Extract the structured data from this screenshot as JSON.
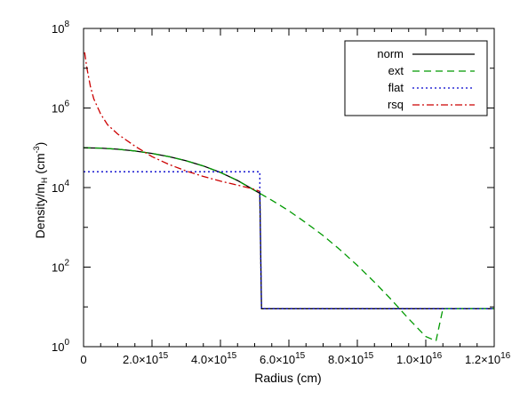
{
  "chart_data": {
    "type": "line",
    "title": "",
    "xlabel": "Radius (cm)",
    "ylabel": {
      "prefix": "Density/m",
      "sub": "H",
      "unit_open": " (cm",
      "unit_sup": "-3",
      "unit_close": ")"
    },
    "xlim": [
      0,
      1.2e+16
    ],
    "ylim": [
      1,
      100000000.0
    ],
    "yscale": "log",
    "grid": false,
    "legend_position": "top-right",
    "x_ticks": [
      {
        "value": 0,
        "mant": "0",
        "exp": ""
      },
      {
        "value": 2000000000000000.0,
        "mant": "2.0×10",
        "exp": "15"
      },
      {
        "value": 4000000000000000.0,
        "mant": "4.0×10",
        "exp": "15"
      },
      {
        "value": 6000000000000000.0,
        "mant": "6.0×10",
        "exp": "15"
      },
      {
        "value": 8000000000000000.0,
        "mant": "8.0×10",
        "exp": "15"
      },
      {
        "value": 1e+16,
        "mant": "1.0×10",
        "exp": "16"
      },
      {
        "value": 1.2e+16,
        "mant": "1.2×10",
        "exp": "16"
      }
    ],
    "y_ticks": [
      {
        "value": 1,
        "base": "10",
        "exp": "0"
      },
      {
        "value": 100,
        "base": "10",
        "exp": "2"
      },
      {
        "value": 10000,
        "base": "10",
        "exp": "4"
      },
      {
        "value": 1000000,
        "base": "10",
        "exp": "6"
      },
      {
        "value": 100000000,
        "base": "10",
        "exp": "8"
      }
    ],
    "series": [
      {
        "name": "norm",
        "color": "#000000",
        "dash": "",
        "x": [
          0,
          500000000000000.0,
          1000000000000000.0,
          1500000000000000.0,
          2000000000000000.0,
          2500000000000000.0,
          3000000000000000.0,
          3500000000000000.0,
          4000000000000000.0,
          4500000000000000.0,
          5000000000000000.0,
          5150000000000000.0,
          5200000000000000.0,
          6000000000000000.0,
          8000000000000000.0,
          1e+16,
          1.2e+16
        ],
        "y": [
          100000,
          98000,
          92000,
          83000,
          72000,
          60000,
          47000,
          35000,
          24000,
          15000,
          8500,
          7200,
          9,
          9,
          9,
          9,
          9
        ]
      },
      {
        "name": "ext",
        "color": "#009900",
        "dash": "8,5",
        "x": [
          0,
          500000000000000.0,
          1000000000000000.0,
          1500000000000000.0,
          2000000000000000.0,
          2500000000000000.0,
          3000000000000000.0,
          3500000000000000.0,
          4000000000000000.0,
          4500000000000000.0,
          5000000000000000.0,
          5500000000000000.0,
          6000000000000000.0,
          6500000000000000.0,
          7000000000000000.0,
          7500000000000000.0,
          8000000000000000.0,
          8500000000000000.0,
          9000000000000000.0,
          9500000000000000.0,
          1e+16,
          1.03e+16,
          1.05e+16,
          1.1e+16,
          1.2e+16
        ],
        "y": [
          100000,
          98000,
          92000,
          83000,
          72000,
          60000,
          47000,
          35000,
          24000,
          15000,
          8500,
          4800,
          2600,
          1300,
          620,
          270,
          110,
          42,
          15,
          5,
          1.8,
          1.4,
          9,
          9,
          9
        ]
      },
      {
        "name": "flat",
        "color": "#0000cc",
        "dash": "2,3",
        "x": [
          0,
          5150000000000000.0,
          5150000000000000.0,
          5200000000000000.0,
          1.2e+16
        ],
        "y": [
          25000,
          25000,
          8000,
          9,
          9
        ]
      },
      {
        "name": "rsq",
        "color": "#cc0000",
        "dash": "8,3,2,3",
        "x": [
          30000000000000.0,
          100000000000000.0,
          200000000000000.0,
          300000000000000.0,
          500000000000000.0,
          700000000000000.0,
          1000000000000000.0,
          1500000000000000.0,
          2000000000000000.0,
          2500000000000000.0,
          3000000000000000.0,
          3500000000000000.0,
          4000000000000000.0,
          4500000000000000.0,
          5000000000000000.0,
          5150000000000000.0
        ],
        "y": [
          25000000,
          10000000,
          3500000,
          1700000,
          700000,
          380000,
          220000,
          110000,
          60000,
          38000,
          26000,
          19000,
          14500,
          11500,
          9000,
          8000
        ]
      }
    ]
  }
}
